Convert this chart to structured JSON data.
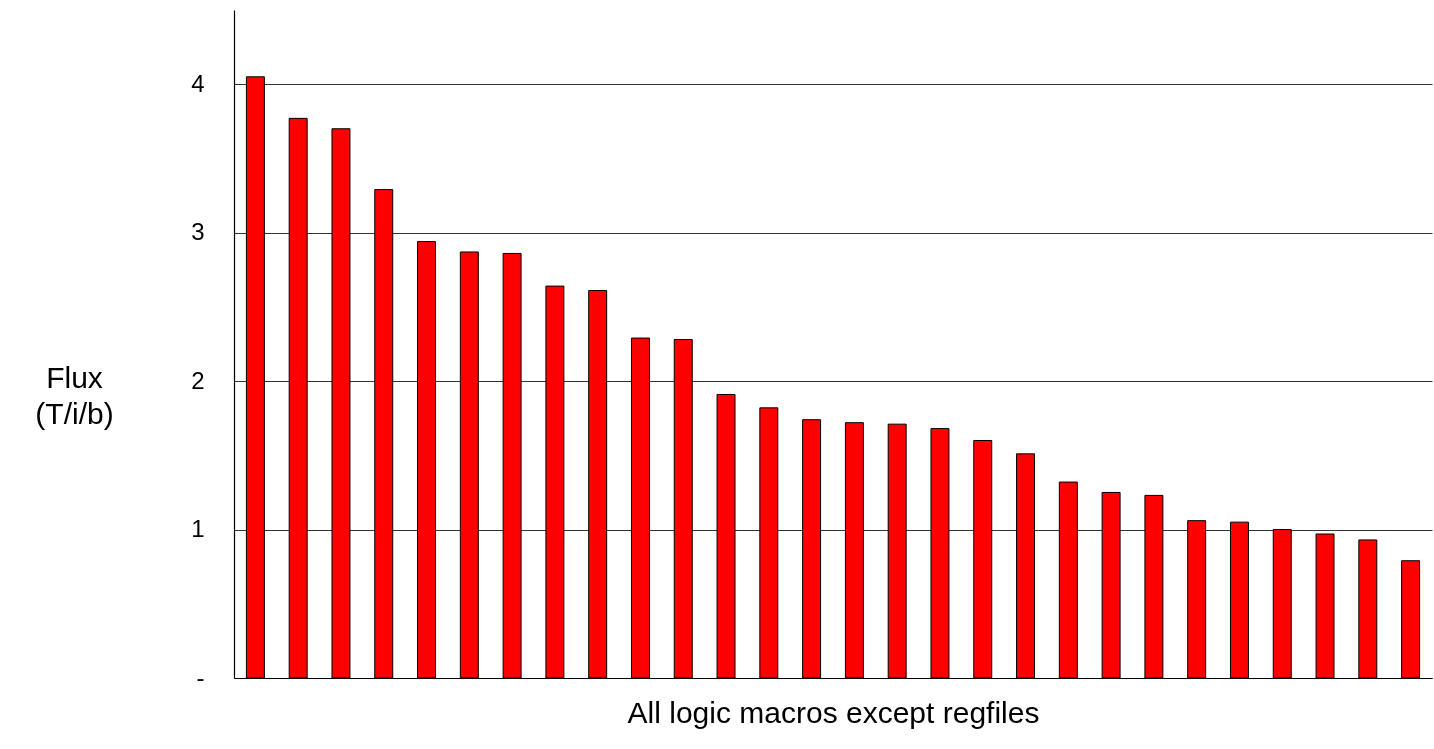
{
  "chart_data": {
    "type": "bar",
    "ylabel": "Flux (T/i/b)",
    "xlabel": "All logic macros except regfiles",
    "categories": [
      null,
      null,
      null,
      null,
      null,
      null,
      null,
      null,
      null,
      null,
      null,
      null,
      null,
      null,
      null,
      null,
      null,
      null,
      null,
      null,
      null,
      null,
      null,
      null,
      null,
      null,
      null,
      null
    ],
    "values": [
      4.05,
      3.77,
      3.7,
      3.29,
      2.94,
      2.87,
      2.86,
      2.64,
      2.61,
      2.29,
      2.28,
      1.91,
      1.82,
      1.74,
      1.72,
      1.71,
      1.68,
      1.6,
      1.51,
      1.32,
      1.25,
      1.23,
      1.06,
      1.05,
      1.0,
      0.97,
      0.93,
      0.79
    ],
    "color": "#ff0000",
    "ylim": [
      0,
      4.5
    ],
    "yticks": [
      {
        "value": 0,
        "label": "-"
      },
      1,
      2,
      3,
      4
    ],
    "grid": "y",
    "tick_labels": "y"
  }
}
